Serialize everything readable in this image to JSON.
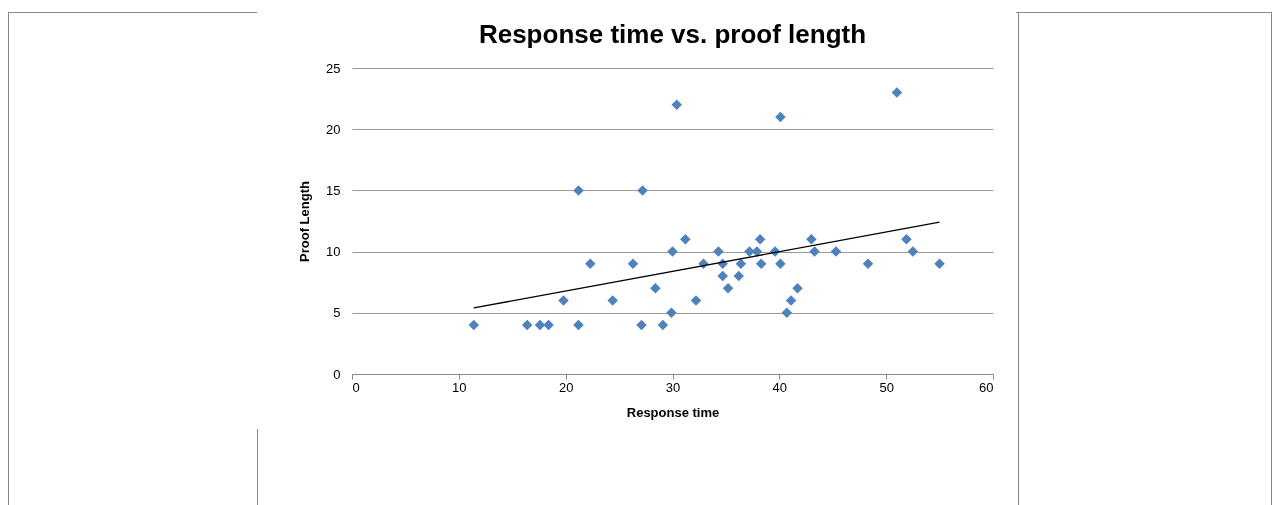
{
  "chart_data": {
    "type": "scatter",
    "title": "Response time vs. proof length",
    "xlabel": "Response time",
    "ylabel": "Proof Length",
    "xlim": [
      0,
      60
    ],
    "xticks": [
      0,
      10,
      20,
      30,
      40,
      50,
      60
    ],
    "ylim": [
      0,
      25
    ],
    "yticks": [
      0,
      5,
      10,
      15,
      20,
      25
    ],
    "grid": "y",
    "series": [
      {
        "color": "#4f81bd",
        "marker": "diamond",
        "x": [
          11.4,
          16.4,
          17.6,
          18.4,
          19.8,
          21.2,
          21.2,
          22.3,
          24.4,
          26.3,
          27.2,
          27.1,
          28.4,
          29.1,
          29.9,
          30.0,
          30.4,
          31.2,
          32.2,
          32.9,
          34.3,
          34.7,
          34.7,
          35.2,
          36.2,
          36.4,
          37.2,
          37.9,
          38.2,
          38.3,
          39.6,
          40.1,
          40.1,
          40.7,
          41.1,
          41.7,
          43.0,
          43.3,
          45.3,
          48.3,
          51.0,
          51.9,
          52.5,
          55.0
        ],
        "values": [
          4,
          4,
          4,
          4,
          6,
          15,
          4,
          9,
          6,
          9,
          15,
          4,
          7,
          4,
          5,
          10,
          22,
          11,
          6,
          9,
          10,
          9,
          8,
          7,
          8,
          9,
          10,
          10,
          11,
          9,
          10,
          21,
          9,
          5,
          6,
          7,
          11,
          10,
          10,
          9,
          23,
          11,
          10,
          9
        ]
      },
      {
        "type": "line",
        "marker": "none",
        "color": "#000000",
        "x": [
          11.4,
          55
        ],
        "values": [
          5.4,
          12.4
        ]
      }
    ]
  }
}
